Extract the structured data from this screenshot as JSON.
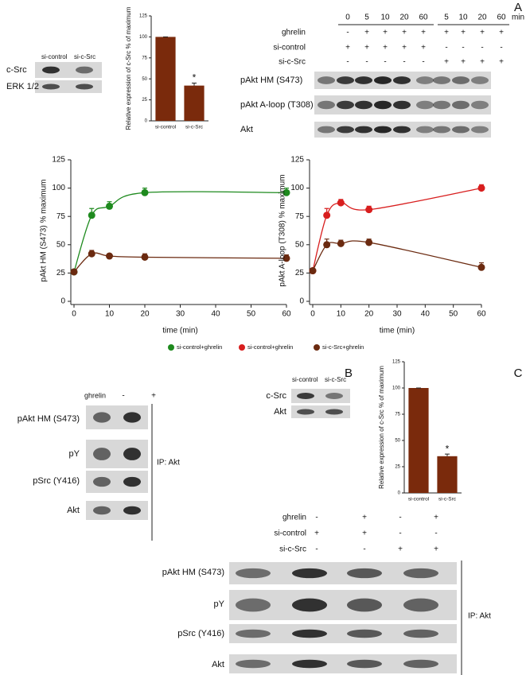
{
  "panel_labels": [
    "A",
    "B",
    "C"
  ],
  "chart_data": [
    {
      "type": "bar",
      "ylabel": "Relative expression of c-Src % of maximum",
      "categories": [
        "si-control",
        "si-c-Src"
      ],
      "values": [
        100,
        42
      ],
      "errors": [
        0,
        3
      ],
      "color": "#7a2a0c",
      "ylim": [
        0,
        125
      ],
      "yticks": [
        0,
        25,
        50,
        75,
        100,
        125
      ],
      "annotation": "*"
    },
    {
      "type": "line",
      "xlabel": "time (min)",
      "ylabel": "pAkt HM (S473) % maximum",
      "x": [
        0,
        5,
        10,
        20,
        60
      ],
      "xlim": [
        0,
        60
      ],
      "xticks": [
        0,
        10,
        20,
        30,
        40,
        50,
        60
      ],
      "ylim": [
        0,
        125
      ],
      "yticks": [
        0,
        25,
        50,
        75,
        100,
        125
      ],
      "series": [
        {
          "name": "si-control+ghrelin",
          "color": "#1e8a1e",
          "values": [
            26,
            76,
            84,
            96,
            96
          ],
          "errors": [
            0,
            6,
            4,
            4,
            4
          ]
        },
        {
          "name": "si-c-Src+ghrelin",
          "color": "#6b2a10",
          "values": [
            26,
            42,
            40,
            39,
            38
          ],
          "errors": [
            0,
            3,
            2,
            3,
            3
          ]
        }
      ]
    },
    {
      "type": "line",
      "xlabel": "time (min)",
      "ylabel": "pAkt A-loop (T308) % maximum",
      "x": [
        0,
        5,
        10,
        20,
        60
      ],
      "xlim": [
        0,
        60
      ],
      "xticks": [
        0,
        10,
        20,
        30,
        40,
        50,
        60
      ],
      "ylim": [
        0,
        125
      ],
      "yticks": [
        0,
        25,
        50,
        75,
        100,
        125
      ],
      "series": [
        {
          "name": "si-control+ghrelin",
          "color": "#d81e1e",
          "values": [
            27,
            76,
            87,
            81,
            100
          ],
          "errors": [
            0,
            6,
            3,
            3,
            3
          ]
        },
        {
          "color": "#6b2a10",
          "values": [
            27,
            50,
            51,
            52,
            30
          ],
          "errors": [
            0,
            5,
            3,
            3,
            4
          ]
        }
      ]
    },
    {
      "type": "bar",
      "ylabel": "Relative expression of c-Src % of maximum",
      "categories": [
        "si-control",
        "si-c-Src"
      ],
      "values": [
        100,
        35
      ],
      "errors": [
        0,
        2
      ],
      "color": "#7a2a0c",
      "ylim": [
        0,
        125
      ],
      "yticks": [
        0,
        25,
        50,
        75,
        100,
        125
      ],
      "annotation": "*"
    }
  ],
  "panel_a": {
    "blot": {
      "lanes": [
        "si-control",
        "si-c-Src"
      ],
      "rows": [
        "c-Src",
        "ERK 1/2"
      ]
    },
    "times": [
      0,
      5,
      10,
      20,
      60,
      5,
      10,
      20,
      60
    ],
    "time_unit": "min",
    "conditions": [
      {
        "label": "ghrelin",
        "signs": [
          "-",
          "+",
          "+",
          "+",
          "+",
          "+",
          "+",
          "+",
          "+"
        ]
      },
      {
        "label": "si-control",
        "signs": [
          "+",
          "+",
          "+",
          "+",
          "+",
          "-",
          "-",
          "-",
          "-"
        ]
      },
      {
        "label": "si-c-Src",
        "signs": [
          "-",
          "-",
          "-",
          "-",
          "-",
          "+",
          "+",
          "+",
          "+"
        ]
      }
    ],
    "blot_rows": [
      "pAkt HM (S473)",
      "pAkt A-loop (T308)",
      "Akt"
    ]
  },
  "panel_b": {
    "conditions": [
      {
        "label": "ghrelin",
        "signs": [
          "-",
          "+"
        ]
      }
    ],
    "blot_rows": [
      "pAkt HM (S473)",
      "pY",
      "pSrc (Y416)",
      "Akt"
    ],
    "ip": "IP: Akt"
  },
  "panel_c": {
    "blot": {
      "lanes": [
        "si-control",
        "si-c-Src"
      ],
      "rows": [
        "c-Src",
        "Akt"
      ]
    },
    "conditions": [
      {
        "label": "ghrelin",
        "signs": [
          "-",
          "+",
          "-",
          "+"
        ]
      },
      {
        "label": "si-control",
        "signs": [
          "+",
          "+",
          "-",
          "-"
        ]
      },
      {
        "label": "si-c-Src",
        "signs": [
          "-",
          "-",
          "+",
          "+"
        ]
      }
    ],
    "blot_rows": [
      "pAkt HM (S473)",
      "pY",
      "pSrc (Y416)",
      "Akt"
    ],
    "ip": "IP: Akt"
  }
}
